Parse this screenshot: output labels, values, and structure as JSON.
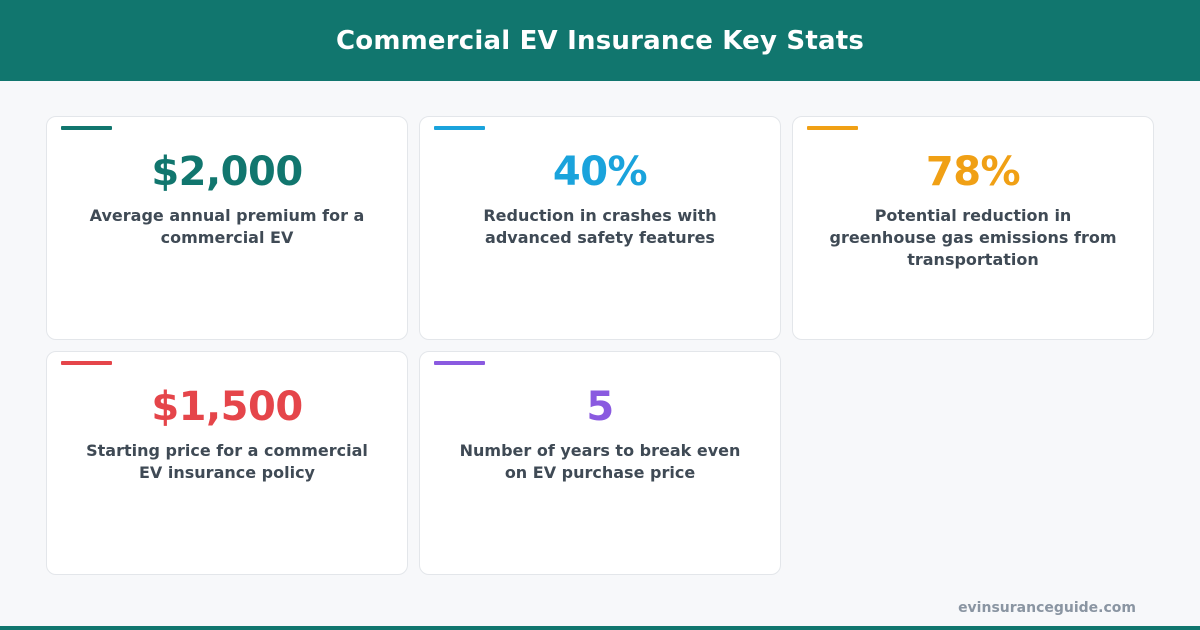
{
  "header": {
    "title": "Commercial EV Insurance Key Stats"
  },
  "cards": [
    {
      "stat": "$2,000",
      "description": "Average annual premium for a commercial EV",
      "color": "#11766e"
    },
    {
      "stat": "40%",
      "description": "Reduction in crashes with advanced safety features",
      "color": "#1aa3dc"
    },
    {
      "stat": "78%",
      "description": "Potential reduction in greenhouse gas emissions from transportation",
      "color": "#f0a015"
    },
    {
      "stat": "$1,500",
      "description": "Starting price for a commercial EV insurance policy",
      "color": "#e5454a"
    },
    {
      "stat": "5",
      "description": "Number of years to break even on EV purchase price",
      "color": "#8a5ae0"
    }
  ],
  "footer": {
    "url": "evinsuranceguide.com"
  },
  "colors": {
    "brand": "#11766e",
    "background": "#f7f8fa",
    "text": "#3f4a55"
  }
}
